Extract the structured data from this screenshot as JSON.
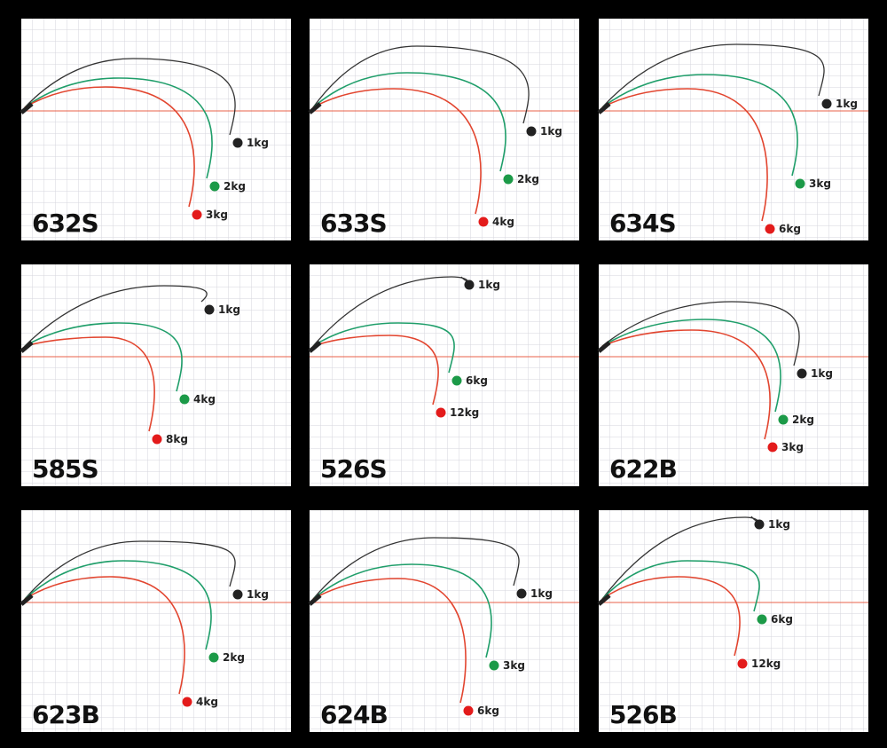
{
  "panels": [
    {
      "model": "632S",
      "loads": [
        "1kg",
        "2kg",
        "3kg"
      ]
    },
    {
      "model": "633S",
      "loads": [
        "1kg",
        "2kg",
        "4kg"
      ]
    },
    {
      "model": "634S",
      "loads": [
        "1kg",
        "3kg",
        "6kg"
      ]
    },
    {
      "model": "585S",
      "loads": [
        "1kg",
        "4kg",
        "8kg"
      ]
    },
    {
      "model": "526S",
      "loads": [
        "1kg",
        "6kg",
        "12kg"
      ]
    },
    {
      "model": "622B",
      "loads": [
        "1kg",
        "2kg",
        "3kg"
      ]
    },
    {
      "model": "623B",
      "loads": [
        "1kg",
        "2kg",
        "4kg"
      ]
    },
    {
      "model": "624B",
      "loads": [
        "1kg",
        "3kg",
        "6kg"
      ]
    },
    {
      "model": "526B",
      "loads": [
        "1kg",
        "6kg",
        "12kg"
      ]
    }
  ]
}
